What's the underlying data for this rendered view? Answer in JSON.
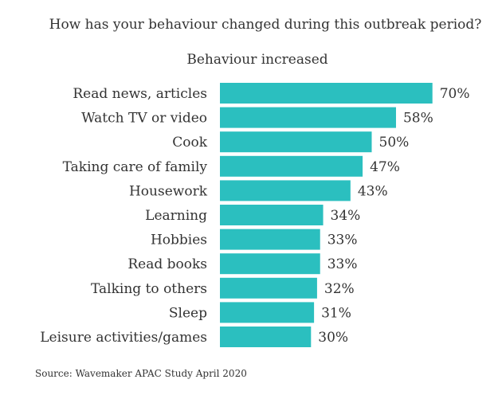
{
  "chart_data": {
    "type": "bar",
    "orientation": "horizontal",
    "title": "How has your behaviour changed during this outbreak period?",
    "subtitle": "Behaviour increased",
    "categories": [
      "Read news, articles",
      "Watch TV or video",
      "Cook",
      "Taking care of family",
      "Housework",
      "Learning",
      "Hobbies",
      "Read books",
      "Talking to others",
      "Sleep",
      "Leisure activities/games"
    ],
    "values": [
      70,
      58,
      50,
      47,
      43,
      34,
      33,
      33,
      32,
      31,
      30
    ],
    "value_labels": [
      "70%",
      "58%",
      "50%",
      "47%",
      "43%",
      "34%",
      "33%",
      "33%",
      "32%",
      "31%",
      "30%"
    ],
    "unit": "%",
    "xlim": [
      0,
      100
    ],
    "grid": false,
    "bar_color": "#2bbfbf",
    "source": "Source: Wavemaker APAC Study April 2020"
  }
}
